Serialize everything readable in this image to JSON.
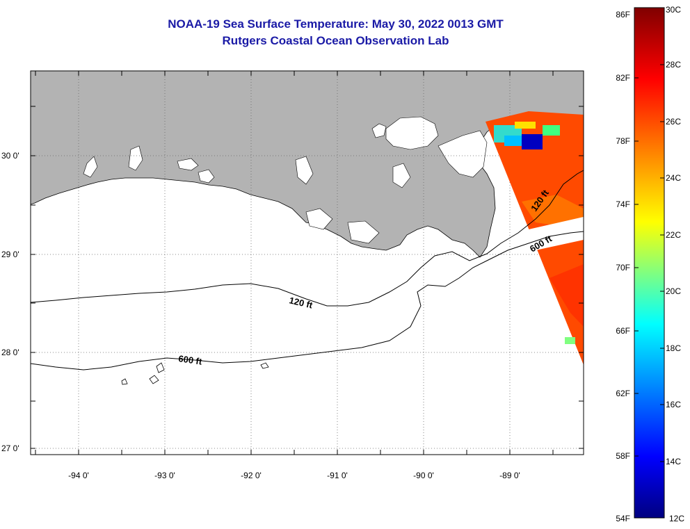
{
  "title": "NOAA-19 Sea Surface Temperature:  May 30, 2022 0013 GMT",
  "subtitle": "Rutgers Coastal Ocean Observation Lab",
  "map": {
    "longitude_labels": [
      "-94 0'",
      "-93 0'",
      "-92 0'",
      "-91 0'",
      "-90 0'",
      "-89 0'"
    ],
    "latitude_labels": [
      "30 0'",
      "29 0'",
      "28 0'",
      "27 0'"
    ],
    "contour_labels": [
      "120 ft",
      "120 ft",
      "600 ft",
      "600 ft"
    ],
    "colors": {
      "land": "#b3b3b3",
      "ocean": "#ffffff",
      "sst_warm": "#ff4a00"
    }
  },
  "colorbar": {
    "fahrenheit_labels": [
      "86F",
      "82F",
      "78F",
      "74F",
      "70F",
      "66F",
      "62F",
      "58F",
      "54F"
    ],
    "celsius_labels": [
      "30C",
      "28C",
      "26C",
      "24C",
      "22C",
      "20C",
      "18C",
      "16C",
      "14C",
      "12C"
    ],
    "gradient": [
      "#000080",
      "#0000ff",
      "#0080ff",
      "#00ffff",
      "#80ff80",
      "#ffff00",
      "#ff8000",
      "#ff0000",
      "#800000"
    ]
  }
}
